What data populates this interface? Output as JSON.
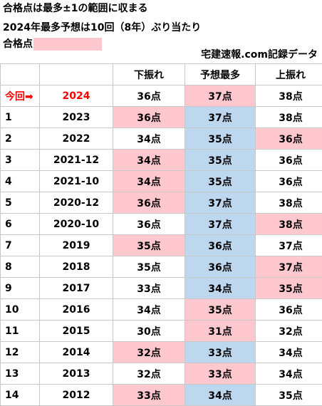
{
  "header": {
    "line1": "合格点は最多±1の範囲に収まる",
    "line2": "2024年最多予想は10回（8年）ぶり当たり",
    "line3_label": "合格点"
  },
  "colors": {
    "pink": "#ffc7ce",
    "blue": "#bdd7ee",
    "current_row_text": "#ff0000"
  },
  "source": "宅建速報.com記録データ",
  "table": {
    "headers": [
      "",
      "",
      "下振れ",
      "予想最多",
      "上振れ"
    ],
    "rows": [
      {
        "no": "今回➡",
        "year": "2024",
        "low": "36点",
        "mode": "37点",
        "high": "38点",
        "hl": "mode",
        "modeColor": "pink",
        "current": true
      },
      {
        "no": "1",
        "year": "2023",
        "low": "36点",
        "mode": "37点",
        "high": "38点",
        "hl": "low",
        "modeColor": "blue"
      },
      {
        "no": "2",
        "year": "2022",
        "low": "34点",
        "mode": "35点",
        "high": "36点",
        "hl": "high",
        "modeColor": "blue"
      },
      {
        "no": "3",
        "year": "2021-12",
        "low": "34点",
        "mode": "35点",
        "high": "36点",
        "hl": "low",
        "modeColor": "blue"
      },
      {
        "no": "4",
        "year": "2021-10",
        "low": "34点",
        "mode": "35点",
        "high": "36点",
        "hl": "low",
        "modeColor": "blue"
      },
      {
        "no": "5",
        "year": "2020-12",
        "low": "36点",
        "mode": "37点",
        "high": "38点",
        "hl": "low",
        "modeColor": "blue"
      },
      {
        "no": "6",
        "year": "2020-10",
        "low": "36点",
        "mode": "37点",
        "high": "38点",
        "hl": "high",
        "modeColor": "blue"
      },
      {
        "no": "7",
        "year": "2019",
        "low": "35点",
        "mode": "36点",
        "high": "37点",
        "hl": "low",
        "modeColor": "blue"
      },
      {
        "no": "8",
        "year": "2018",
        "low": "35点",
        "mode": "36点",
        "high": "37点",
        "hl": "high",
        "modeColor": "blue"
      },
      {
        "no": "9",
        "year": "2017",
        "low": "33点",
        "mode": "34点",
        "high": "35点",
        "hl": "high",
        "modeColor": "blue"
      },
      {
        "no": "10",
        "year": "2016",
        "low": "34点",
        "mode": "35点",
        "high": "36点",
        "hl": "mode",
        "modeColor": "pink"
      },
      {
        "no": "11",
        "year": "2015",
        "low": "30点",
        "mode": "31点",
        "high": "32点",
        "hl": "mode",
        "modeColor": "pink"
      },
      {
        "no": "12",
        "year": "2014",
        "low": "32点",
        "mode": "33点",
        "high": "34点",
        "hl": "low",
        "modeColor": "blue"
      },
      {
        "no": "13",
        "year": "2013",
        "low": "32点",
        "mode": "33点",
        "high": "34点",
        "hl": "mode",
        "modeColor": "pink"
      },
      {
        "no": "14",
        "year": "2012",
        "low": "33点",
        "mode": "34点",
        "high": "35点",
        "hl": "low",
        "modeColor": "blue"
      }
    ]
  }
}
